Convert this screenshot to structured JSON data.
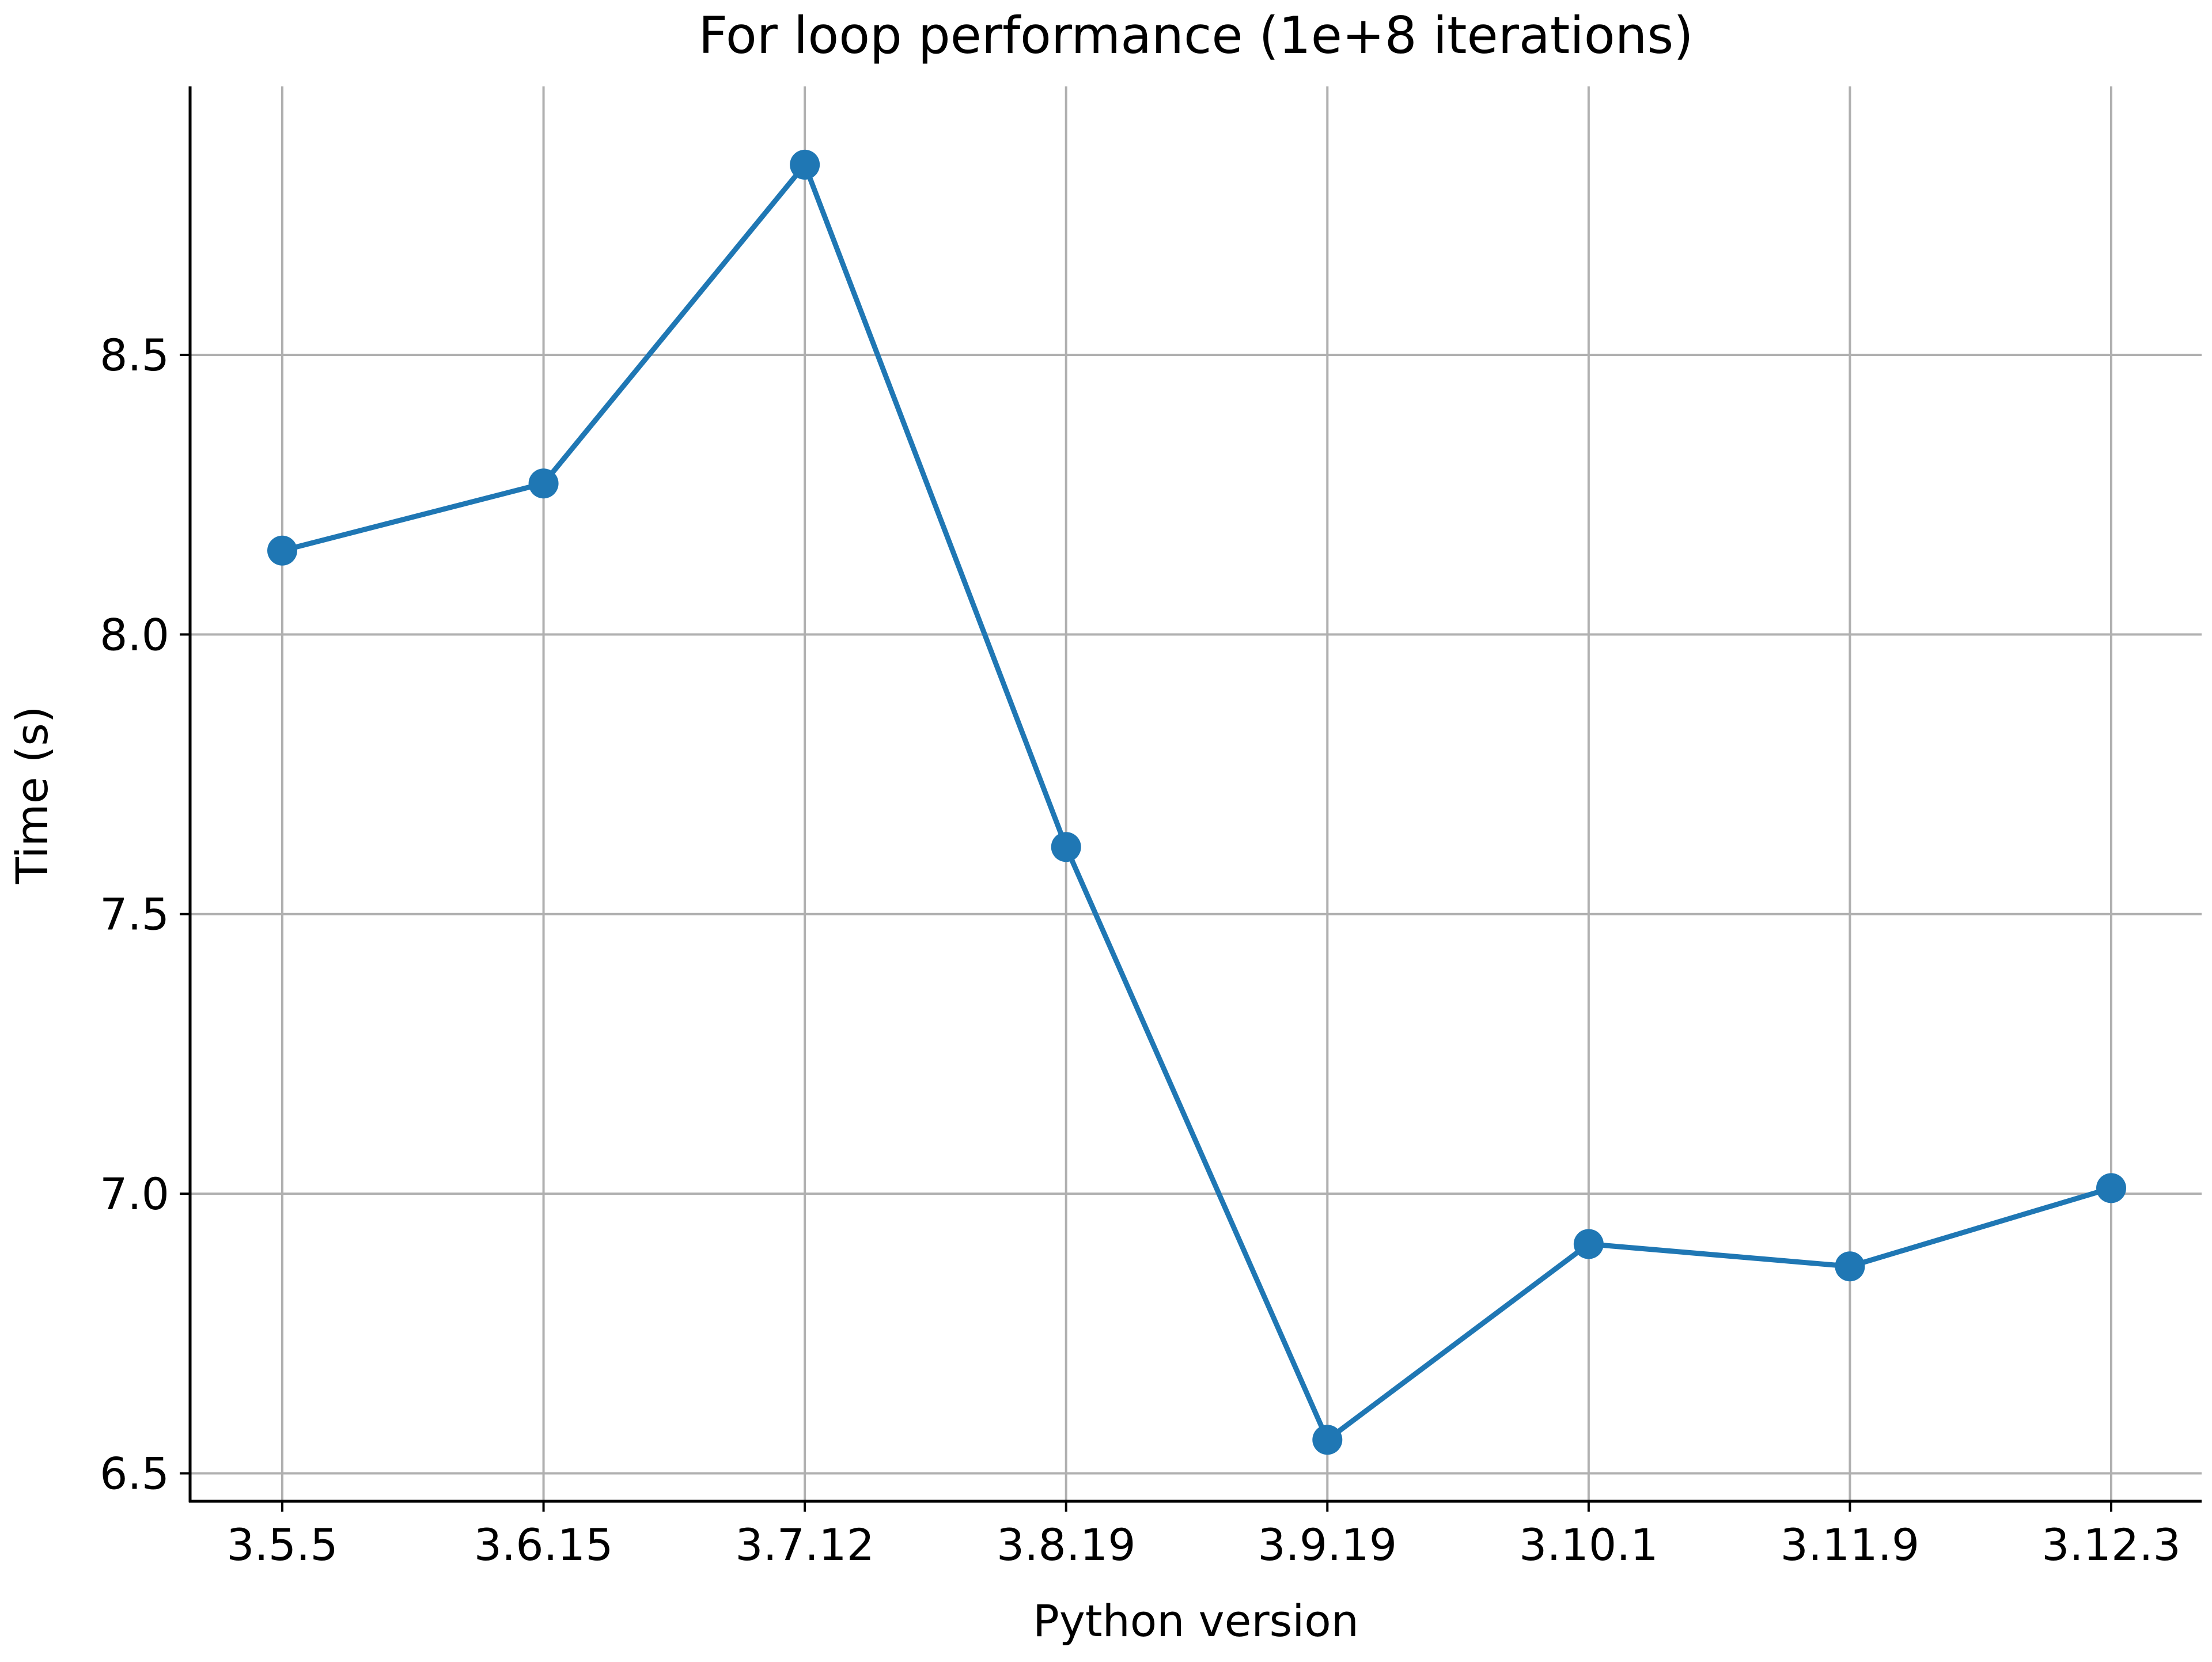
{
  "chart_data": {
    "type": "line",
    "title": "For loop performance (1e+8 iterations)",
    "xlabel": "Python version",
    "ylabel": "Time (s)",
    "categories": [
      "3.5.5",
      "3.6.15",
      "3.7.12",
      "3.8.19",
      "3.9.19",
      "3.10.1",
      "3.11.9",
      "3.12.3"
    ],
    "series": [
      {
        "values": [
          8.15,
          8.27,
          8.84,
          7.62,
          6.56,
          6.91,
          6.87,
          7.01
        ]
      }
    ],
    "yticks": [
      "6.5",
      "7.0",
      "7.5",
      "8.0",
      "8.5"
    ],
    "ylim": [
      6.45,
      8.98
    ],
    "grid": true,
    "colors": {
      "line": "#1f77b4",
      "grid": "#b0b0b0",
      "axis": "#000000"
    }
  }
}
